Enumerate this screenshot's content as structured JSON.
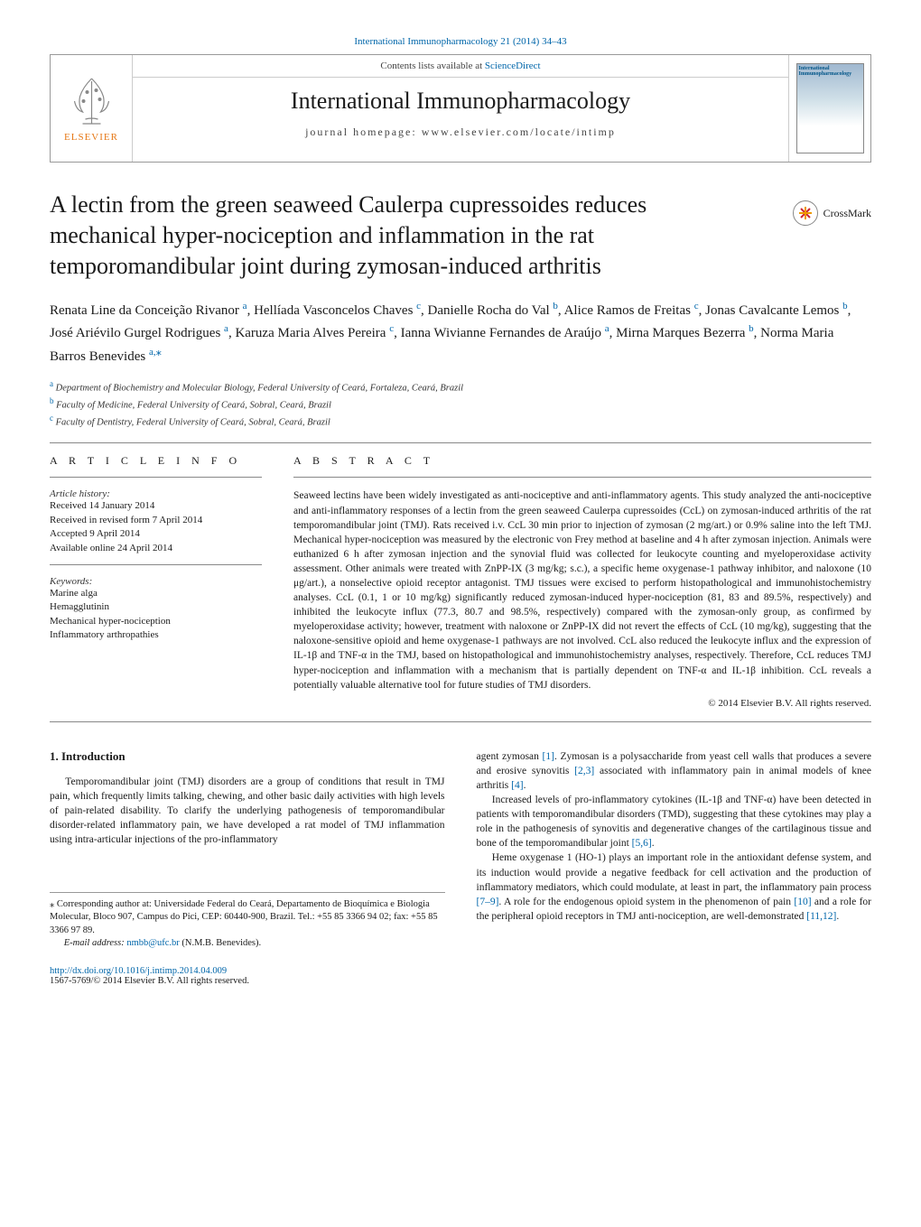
{
  "citation": "International Immunopharmacology 21 (2014) 34–43",
  "header": {
    "contents_text": "Contents lists available at ",
    "contents_link": "ScienceDirect",
    "journal_title": "International Immunopharmacology",
    "homepage_label": "journal homepage: www.elsevier.com/locate/intimp",
    "publisher": "ELSEVIER",
    "cover_label": "International Immunopharmacology"
  },
  "crossmark": "CrossMark",
  "title": "A lectin from the green seaweed Caulerpa cupressoides reduces mechanical hyper-nociception and inflammation in the rat temporomandibular joint during zymosan-induced arthritis",
  "authors_html": "Renata Line da Conceição Rivanor <sup class='sup'>a</sup>, Hellíada Vasconcelos Chaves <sup class='sup'>c</sup>, Danielle Rocha do Val <sup class='sup'>b</sup>, Alice Ramos de Freitas <sup class='sup'>c</sup>, Jonas Cavalcante Lemos <sup class='sup'>b</sup>, José Ariévilo Gurgel Rodrigues <sup class='sup'>a</sup>, Karuza Maria Alves Pereira <sup class='sup'>c</sup>, Ianna Wivianne Fernandes de Araújo <sup class='sup'>a</sup>, Mirna Marques Bezerra <sup class='sup'>b</sup>, Norma Maria Barros Benevides <sup class='sup'>a,</sup><sup class='star'>⁎</sup>",
  "affiliations": [
    {
      "sup": "a",
      "text": "Department of Biochemistry and Molecular Biology, Federal University of Ceará, Fortaleza, Ceará, Brazil"
    },
    {
      "sup": "b",
      "text": "Faculty of Medicine, Federal University of Ceará, Sobral, Ceará, Brazil"
    },
    {
      "sup": "c",
      "text": "Faculty of Dentistry, Federal University of Ceará, Sobral, Ceará, Brazil"
    }
  ],
  "article_info": {
    "heading": "A R T I C L E   I N F O",
    "history_label": "Article history:",
    "history": [
      "Received 14 January 2014",
      "Received in revised form 7 April 2014",
      "Accepted 9 April 2014",
      "Available online 24 April 2014"
    ],
    "keywords_label": "Keywords:",
    "keywords": [
      "Marine alga",
      "Hemagglutinin",
      "Mechanical hyper-nociception",
      "Inflammatory arthropathies"
    ]
  },
  "abstract": {
    "heading": "A B S T R A C T",
    "text": "Seaweed lectins have been widely investigated as anti-nociceptive and anti-inflammatory agents. This study analyzed the anti-nociceptive and anti-inflammatory responses of a lectin from the green seaweed Caulerpa cupressoides (CcL) on zymosan-induced arthritis of the rat temporomandibular joint (TMJ). Rats received i.v. CcL 30 min prior to injection of zymosan (2 mg/art.) or 0.9% saline into the left TMJ. Mechanical hyper-nociception was measured by the electronic von Frey method at baseline and 4 h after zymosan injection. Animals were euthanized 6 h after zymosan injection and the synovial fluid was collected for leukocyte counting and myeloperoxidase activity assessment. Other animals were treated with ZnPP-IX (3 mg/kg; s.c.), a specific heme oxygenase-1 pathway inhibitor, and naloxone (10 μg/art.), a nonselective opioid receptor antagonist. TMJ tissues were excised to perform histopathological and immunohistochemistry analyses. CcL (0.1, 1 or 10 mg/kg) significantly reduced zymosan-induced hyper-nociception (81, 83 and 89.5%, respectively) and inhibited the leukocyte influx (77.3, 80.7 and 98.5%, respectively) compared with the zymosan-only group, as confirmed by myeloperoxidase activity; however, treatment with naloxone or ZnPP-IX did not revert the effects of CcL (10 mg/kg), suggesting that the naloxone-sensitive opioid and heme oxygenase-1 pathways are not involved. CcL also reduced the leukocyte influx and the expression of IL-1β and TNF-α in the TMJ, based on histopathological and immunohistochemistry analyses, respectively. Therefore, CcL reduces TMJ hyper-nociception and inflammation with a mechanism that is partially dependent on TNF-α and IL-1β inhibition. CcL reveals a potentially valuable alternative tool for future studies of TMJ disorders.",
    "copyright": "© 2014 Elsevier B.V. All rights reserved."
  },
  "intro": {
    "heading": "1. Introduction",
    "left_para": "Temporomandibular joint (TMJ) disorders are a group of conditions that result in TMJ pain, which frequently limits talking, chewing, and other basic daily activities with high levels of pain-related disability. To clarify the underlying pathogenesis of temporomandibular disorder-related inflammatory pain, we have developed a rat model of TMJ inflammation using intra-articular injections of the pro-inflammatory",
    "right_p1_html": "agent zymosan <span class='cite'>[1]</span>. Zymosan is a polysaccharide from yeast cell walls that produces a severe and erosive synovitis <span class='cite'>[2,3]</span> associated with inflammatory pain in animal models of knee arthritis <span class='cite'>[4]</span>.",
    "right_p2_html": "Increased levels of pro-inflammatory cytokines (IL-1β and TNF-α) have been detected in patients with temporomandibular disorders (TMD), suggesting that these cytokines may play a role in the pathogenesis of synovitis and degenerative changes of the cartilaginous tissue and bone of the temporomandibular joint <span class='cite'>[5,6]</span>.",
    "right_p3_html": "Heme oxygenase 1 (HO-1) plays an important role in the antioxidant defense system, and its induction would provide a negative feedback for cell activation and the production of inflammatory mediators, which could modulate, at least in part, the inflammatory pain process <span class='cite'>[7–9]</span>. A role for the endogenous opioid system in the phenomenon of pain <span class='cite'>[10]</span> and a role for the peripheral opioid receptors in TMJ anti-nociception, are well-demonstrated <span class='cite'>[11,12]</span>."
  },
  "footnote": {
    "corresponding": "⁎ Corresponding author at: Universidade Federal do Ceará, Departamento de Bioquímica e Biologia Molecular, Bloco 907, Campus do Pici, CEP: 60440-900, Brazil. Tel.: +55 85 3366 94 02; fax: +55 85 3366 97 89.",
    "email_label": "E-mail address: ",
    "email": "nmbb@ufc.br",
    "email_name": " (N.M.B. Benevides)."
  },
  "doi": {
    "url": "http://dx.doi.org/10.1016/j.intimp.2014.04.009",
    "issn": "1567-5769/© 2014 Elsevier B.V. All rights reserved."
  }
}
